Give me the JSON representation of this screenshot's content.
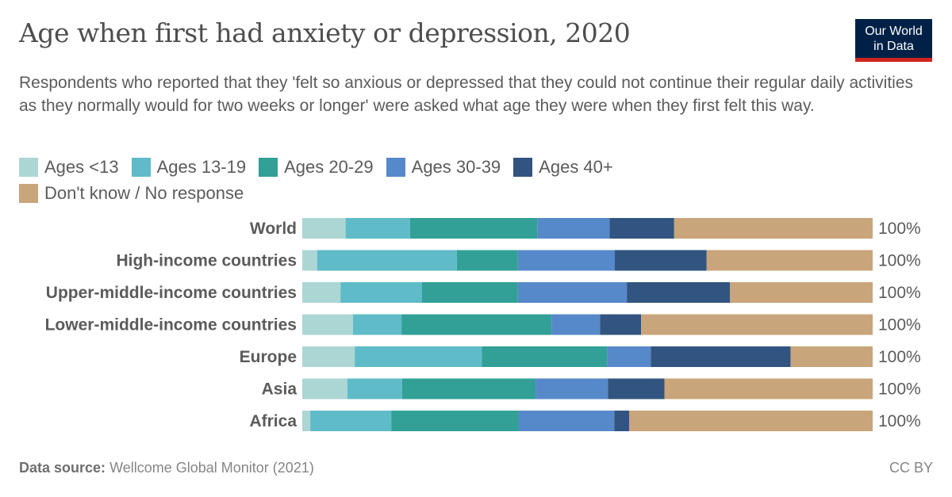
{
  "title": "Age when first had anxiety or depression, 2020",
  "subtitle": "Respondents who reported that they 'felt so anxious or depressed that they could not continue their regular daily activities as they normally would for two weeks or longer' were asked what age they were when they first felt this way.",
  "logo": "Our World in Data",
  "footer": {
    "source_label": "Data source:",
    "source": "Wellcome Global Monitor (2021)",
    "license": "CC BY"
  },
  "chart_data": {
    "type": "bar",
    "orientation": "horizontal",
    "stacked": "100%",
    "legend_placement": "top-left",
    "categories": [
      "World",
      "High-income countries",
      "Upper-middle-income countries",
      "Lower-middle-income countries",
      "Europe",
      "Asia",
      "Africa"
    ],
    "totals": [
      "100%",
      "100%",
      "100%",
      "100%",
      "100%",
      "100%",
      "100%"
    ],
    "series": [
      {
        "name": "Ages <13",
        "color": "#acd6d4",
        "values": [
          7.6,
          2.6,
          6.7,
          8.9,
          9.2,
          7.9,
          1.4
        ]
      },
      {
        "name": "Ages 13-19",
        "color": "#5fbbc8",
        "values": [
          11.3,
          24.5,
          14.3,
          8.5,
          22.3,
          9.6,
          14.2
        ]
      },
      {
        "name": "Ages 20-29",
        "color": "#32a096",
        "values": [
          22.3,
          10.7,
          16.8,
          26.3,
          22.0,
          23.4,
          22.3
        ]
      },
      {
        "name": "Ages 30-39",
        "color": "#5689c9",
        "values": [
          12.7,
          17.0,
          19.1,
          8.5,
          7.6,
          12.7,
          16.8
        ]
      },
      {
        "name": "Ages 40+",
        "color": "#325480",
        "values": [
          11.3,
          16.1,
          18.1,
          7.2,
          24.5,
          9.9,
          2.6
        ]
      },
      {
        "name": "Don't know / No response",
        "color": "#c8a57a",
        "values": [
          34.8,
          29.1,
          25.0,
          40.6,
          14.4,
          36.5,
          42.7
        ]
      }
    ]
  }
}
